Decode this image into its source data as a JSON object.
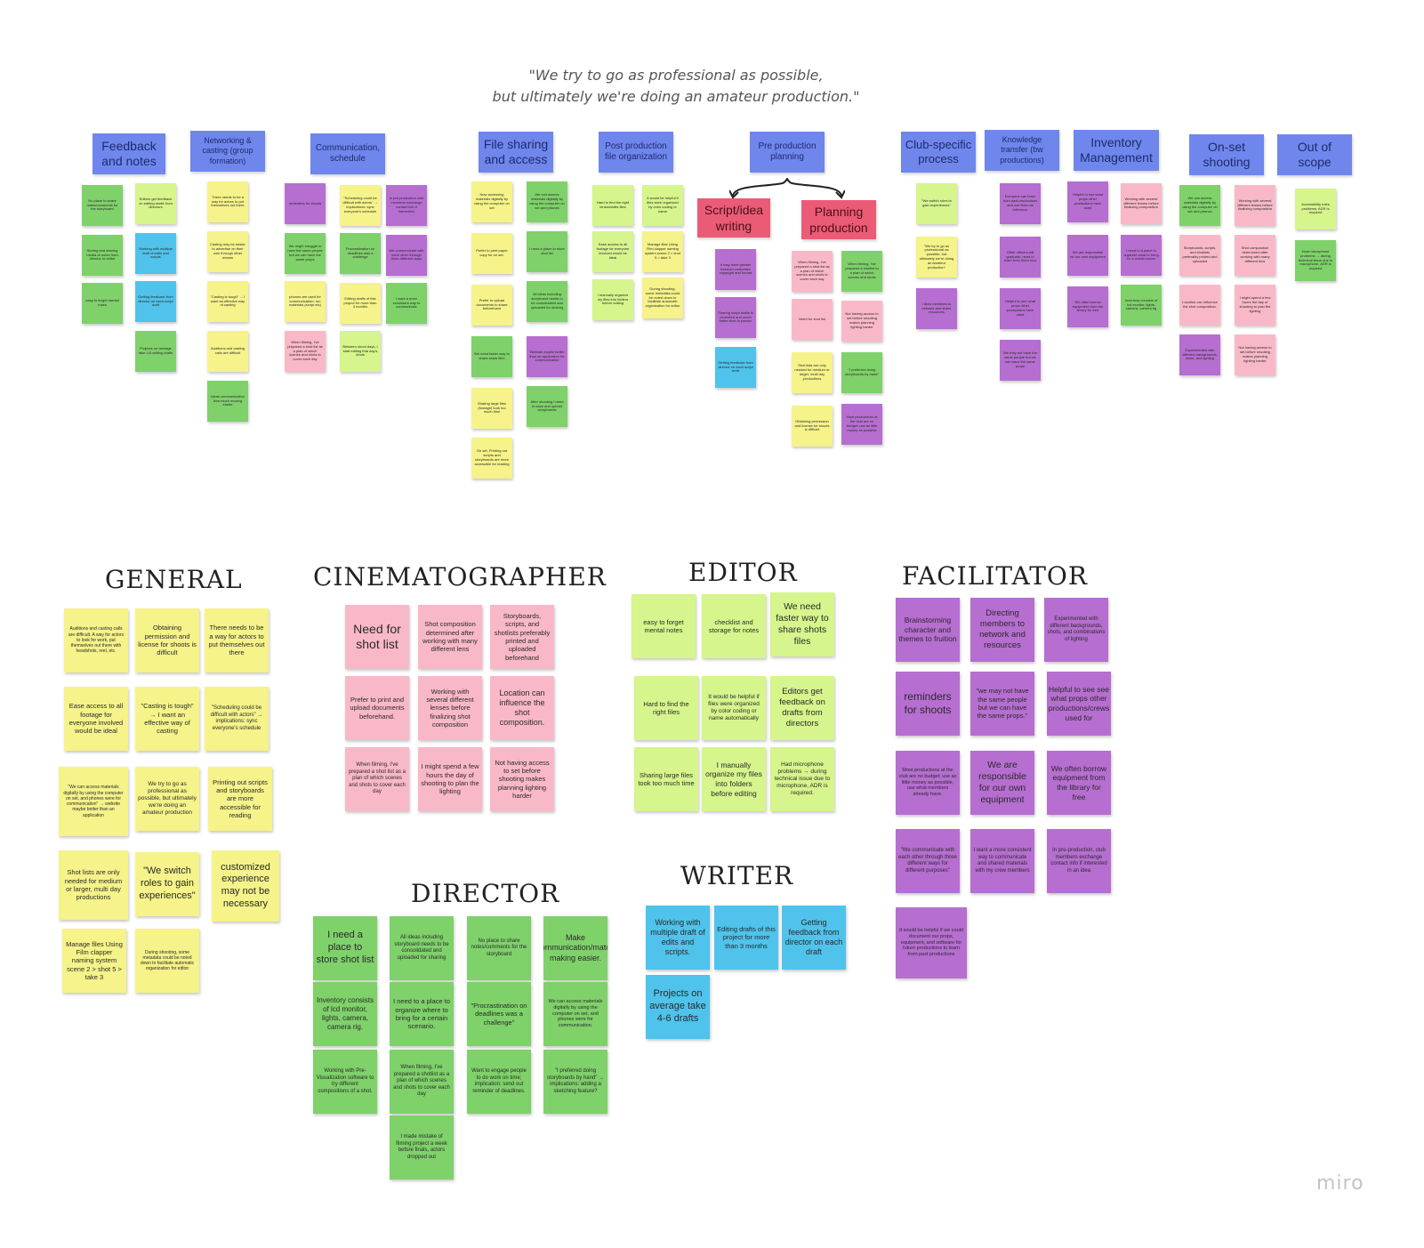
{
  "quote": {
    "line1": "\"We try to go as professional as possible,",
    "line2": "but ultimately we're doing an amateur production.\""
  },
  "headers": [
    "Feedback and notes",
    "Networking & casting (group formation)",
    "Communication, schedule",
    "File sharing and access",
    "Post production file organization",
    "Pre production planning",
    "Club-specific process",
    "Knowledge transfer (bw productions)",
    "Inventory Management",
    "On-set shooting",
    "Out of scope"
  ],
  "preproduction_subheaders": [
    "Script/idea writing",
    "Planning production"
  ],
  "clusters": {
    "feedback": [
      "No place to share notes/comments for the storyboard",
      "Editors get feedback on editing drafts from directors",
      "Storing and sharing media of notes from director to editor",
      "Working with multiple draft of edits and scripts",
      "easy to forget mental notes",
      "Getting feedback from director on each script draft",
      "Projects on average take 4-6 editing drafts"
    ],
    "networking": [
      "There needs to be a way for actors to put themselves out there",
      "Casting may be easier to advertise on their own through other means",
      "\"Casting is tough\" → I want an effective way of casting",
      "Auditions and casting calls are difficult",
      "Ideas communication flow much moving easier"
    ],
    "communication": [
      "reminders for shoots",
      "\"Scheduling could be difficult with actors\" → implications: sync everyone's schedule",
      "In pre-production club members exchange contact info if interested",
      "We might struggle to have the same people but we can have the same props",
      "Procrastination on deadlines was a challenge",
      "We communicate with each other through three different ways",
      "phones are used for communication: run materials (script etc)",
      "Editing drafts of this project for more than 3 months",
      "I want a more consistent way to communicate",
      "When filming, I've prepared a shot list as a plan of which scenes and shots to cover each day",
      "Between shoot days, I start editing that day's shots"
    ],
    "filesharing": [
      "Now accessing materials digitally by using the computer on set",
      "We can access materials digitally by using the computer on set and phones",
      "Prefer to print paper copy for on set.",
      "I need a place to store shot list",
      "Prefer to upload documents to share beforehand",
      "All ideas including storyboard needs to be consolidated and uploaded for sharing",
      "We need faster way to share shots files",
      "Website maybe better than an application for communication",
      "Sharing large files (footage) took too much time",
      "After shooting I need to save and upload storyboards",
      "On set, Printing out scripts and storyboards are more accessible for reading"
    ],
    "postproduction": [
      "Hard to find the right lenses/edits files",
      "It would be helpful if files were organized by color coding or name",
      "Ease access to all footage for everyone involved would be ideal",
      "Manage files Using Film clapper naming system scene 2 > shot 5 > take 3",
      "I manually organize my files into folders before editing",
      "During shooting, some metadata could be noted down to facilitate automatic organization for editor"
    ],
    "script": [
      "It may have greater freedom customize copyright and format",
      "Sharing script drafts is permitted and much better than in person",
      "Getting feedback from director on each script draft"
    ],
    "planning": [
      "When filming, I've prepared a shot list as a plan of which scenes and shots to cover each day",
      "When filming, I've prepared a shotlist to a plan of which scenes and shots",
      "Need for shot list",
      "Not having access to set before shooting makes planning lighting harder",
      "Shot lists are only needed for medium or larger, multi day productions",
      "\"I preferred doing storyboards by hand\"",
      "Obtaining permission and license for shoots is difficult",
      "Most productions at the club are no budget; use as little money as possible"
    ],
    "club": [
      "\"We switch roles to gain experiences\"",
      "\"We try to go as professional as possible, but ultimately we're doing an amateur production\"",
      "I liked members to network and share resources"
    ],
    "knowledge": [
      "Everyone can learn from past productions and use them as reference",
      "Other officers will graduate, need to learn from them now",
      "Helpful to see what props other productions have used",
      "We may not have the same people but we can have the same props"
    ],
    "inventory": [
      "Helpful to see what props other productions have used",
      "Working with several different lenses before finalizing composition",
      "We are responsible for our own equipment",
      "I need to a place to organize what to bring for a certain scene",
      "We often borrow equipment from the library for free",
      "Inventory consists of lcd monitor, lights, camera, camera rig"
    ],
    "onset": [
      "We can access materials digitally by using the computer on set and phones",
      "Working with several different lenses before finalizing composition",
      "Storyboards, scripts, and shotlists preferably printed and uploaded",
      "Shot composition determined after working with many different lens",
      "Location can influence the shot composition.",
      "I might spend a few hours the day of shooting to plan the lighting",
      "Experimented with different backgrounds, shots, and lighting",
      "Not having access to set before shooting makes planning lighting harder"
    ],
    "outofscope": [
      "Accessibility rules problems: ADR is required",
      "Hard microphone problems → during technical issue due to microphone, ADR is required"
    ]
  },
  "roles": {
    "general": {
      "title": "GENERAL",
      "notes": [
        "Auditions and casting calls are difficult. A way for actors to look for work, put themselves out there with headshots, reel, etc.",
        "Obtaining permission and license for shoots is difficult",
        "There needs to be a way for actors to put themselves out there",
        "Ease access to all footage for everyone involved would be ideal",
        "\"Casting is tough\" → I want an effective way of casting",
        "\"Scheduling could be difficult with actors\" → implications: sync everyone's schedule",
        "\"We can access materials digitally by using the computer on set, and phones were for communication\" → website maybe better than an application",
        "We try to go as professional as possible, but ultimately we're doing an amateur production",
        "Printing out scripts and storyboards are more accessible for reading",
        "Shot lists are only needed for medium or larger, multi day productions",
        "\"We switch roles to gain experiences\"",
        "customized experience may not be necessary",
        "Manage files Using Film clapper naming system scene 2 > shot 5 > take 3",
        "During shooting, some metadata could be noted down to facilitate automatic organization for editor"
      ]
    },
    "cinematographer": {
      "title": "CINEMATOGRAPHER",
      "notes": [
        "Need for shot list",
        "Shot composition determined after working with many different lens",
        "Storyboards, scripts, and shotlists preferably printed and uploaded beforehand",
        "Prefer to print and upload documents beforehand.",
        "Working with several different lenses before finalizing shot composition",
        "Location can influence the shot composition.",
        "When filming, I've prepared a shot list as a plan of which scenes and shots to cover each day",
        "I might spend a few hours the day of shooting to plan the lighting",
        "Not having access to set before shooting makes planning lighting harder"
      ]
    },
    "editor": {
      "title": "EDITOR",
      "notes": [
        "easy to forget mental notes",
        "checklist and storage for notes",
        "We need faster way to share shots files",
        "Hard to find the right files",
        "It would be helpful if files were organized by color coding or name automatically",
        "Editors get feedback on drafts from directors",
        "Sharing large files took too much time",
        "I manually organize my files into folders before editing",
        "Had microphone problems → during technical issue due to microphone, ADR is required."
      ]
    },
    "writer": {
      "title": "WRITER",
      "notes": [
        "Working with multiple draft of edits and scripts.",
        "Editing drafts of this project for more than 3 months",
        "Getting feedback from director on each draft",
        "Projects on average take 4-6 drafts"
      ]
    },
    "director": {
      "title": "DIRECTOR",
      "notes": [
        "I need a place to store shot list",
        "All ideas including storyboard needs to be consolidated and uploaded for sharing",
        "No place to share notes/comments for the storyboard",
        "Make communication/match making easier.",
        "Inventory consists of lcd monitor, lights, camera, camera rig.",
        "I need to a place to organize where to bring for a certain scenario.",
        "\"Procrastination on deadlines was a challenge\"",
        "We can access materials digitally by using the computer on set, and phones were for communication.",
        "Working with Pre-Visualization software to try different compositions of a shot.",
        "When filming, I've prepared a shotlist as a plan of which scenes and shots to cover each day",
        "Want to engage people to do work on time; implication: send out reminder of deadlines.",
        "\"I preferred doing storyboards by hand\" → implications: adding a sketching feature?",
        "I made mistake of filming project a week before finals, actors dropped out"
      ]
    },
    "facilitator": {
      "title": "FACILITATOR",
      "notes": [
        "Brainstorming character and themes to fruition",
        "Directing members to network and resources",
        "Experimented with different backgrounds, shots, and combinations of lighting",
        "reminders for shoots",
        "\"we may not have the same people but we can have the same props.\"",
        "Helpful to see see what props other productions/crews used for",
        "Most productions at the club are no budget; use as little money as possible, use what members already have.",
        "We are responsible for our own equipment",
        "We often borrow equipment from the library for free",
        "\"We communicate with each other through three different ways for different purposes\"",
        "I want a more consistent way to communicate and shared materials with my crew members",
        "In pre-production, club members exchange contact info if interested in an idea",
        "It would be helpful if we could document our props, equipment, and software for future productions to learn from past productions"
      ]
    }
  },
  "brand": "miro",
  "colors": {
    "header_blue": "#6f86ec",
    "header_red": "#eb5b76",
    "yellow": "#f5f389",
    "green": "#7fd16a",
    "lime": "#d6f58c",
    "blue": "#4fc3ec",
    "pink": "#f9b8c8",
    "purple": "#b66ed0"
  }
}
